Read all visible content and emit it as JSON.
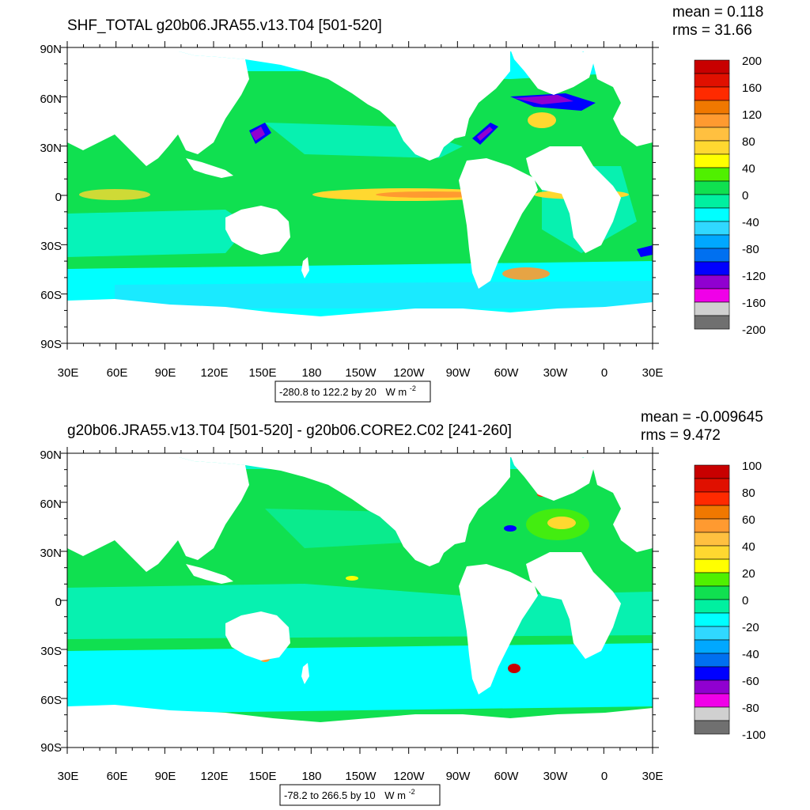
{
  "panels": [
    {
      "title": "SHF_TOTAL g20b06.JRA55.v13.T04 [501-520]",
      "mean_label": "mean = 0.118",
      "rms_label": "rms = 31.66",
      "lat_labels": [
        "90N",
        "60N",
        "30N",
        "0",
        "30S",
        "60S",
        "90S"
      ],
      "lon_labels": [
        "30E",
        "60E",
        "90E",
        "120E",
        "150E",
        "180",
        "150W",
        "120W",
        "90W",
        "60W",
        "30W",
        "0",
        "30E"
      ],
      "colorbar_labels": [
        "200",
        "160",
        "120",
        "80",
        "40",
        "0",
        "-40",
        "-80",
        "-120",
        "-160",
        "-200"
      ],
      "colorbar_colors": [
        "#c80000",
        "#e01000",
        "#ff2a00",
        "#f07800",
        "#ff9a30",
        "#ffc040",
        "#ffd830",
        "#ffff00",
        "#50f000",
        "#10e050",
        "#00f0a0",
        "#00ffff",
        "#30d8ff",
        "#00a8ff",
        "#0070f0",
        "#0000ff",
        "#9000d0",
        "#f000e8",
        "#d0d0d0",
        "#707070"
      ],
      "range_caption": "-280.8 to 122.2 by 20",
      "range_units": "W m",
      "range_units_sup": "-2"
    },
    {
      "title": "g20b06.JRA55.v13.T04 [501-520] - g20b06.CORE2.C02 [241-260]",
      "mean_label": "mean = -0.009645",
      "rms_label": "rms = 9.472",
      "lat_labels": [
        "90N",
        "60N",
        "30N",
        "0",
        "30S",
        "60S",
        "90S"
      ],
      "lon_labels": [
        "30E",
        "60E",
        "90E",
        "120E",
        "150E",
        "180",
        "150W",
        "120W",
        "90W",
        "60W",
        "30W",
        "0",
        "30E"
      ],
      "colorbar_labels": [
        "100",
        "80",
        "60",
        "40",
        "20",
        "0",
        "-20",
        "-40",
        "-60",
        "-80",
        "-100"
      ],
      "colorbar_colors": [
        "#c80000",
        "#e01000",
        "#ff2a00",
        "#f07800",
        "#ff9a30",
        "#ffc040",
        "#ffd830",
        "#ffff00",
        "#50f000",
        "#10e050",
        "#00f0a0",
        "#00ffff",
        "#30d8ff",
        "#00a8ff",
        "#0070f0",
        "#0000ff",
        "#9000d0",
        "#f000e8",
        "#d0d0d0",
        "#707070"
      ],
      "range_caption": "-78.2 to 266.5 by 10",
      "range_units": "W m",
      "range_units_sup": "-2"
    }
  ],
  "map_colors": {
    "ocean_base": "#10e050",
    "land": "#ffffff",
    "cool_anomaly": "#00ffff",
    "cooler_anomaly": "#30d8ff",
    "warm_anomaly": "#ffd830",
    "strong_warm": "#ff9a30",
    "strong_cool": "#0000ff",
    "extreme_cool": "#9000d0",
    "magenta": "#f000e8"
  }
}
